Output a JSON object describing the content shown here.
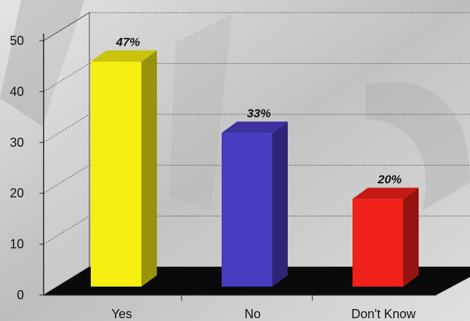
{
  "chart_data": {
    "type": "bar",
    "categories": [
      "Yes",
      "No",
      "Don't Know"
    ],
    "values": [
      47,
      33,
      20
    ],
    "data_labels": [
      "47%",
      "33%",
      "20%"
    ],
    "ylim": [
      0,
      50
    ],
    "yticks": [
      "0",
      "10",
      "20",
      "30",
      "40",
      "50"
    ],
    "style": "3d",
    "grid": true,
    "legend": "none",
    "colors": {
      "bars": [
        "#f5ee10",
        "#4a3cc0",
        "#f0201a"
      ],
      "floor": "#0a0a0a",
      "wall": "#cfcfcf"
    }
  }
}
